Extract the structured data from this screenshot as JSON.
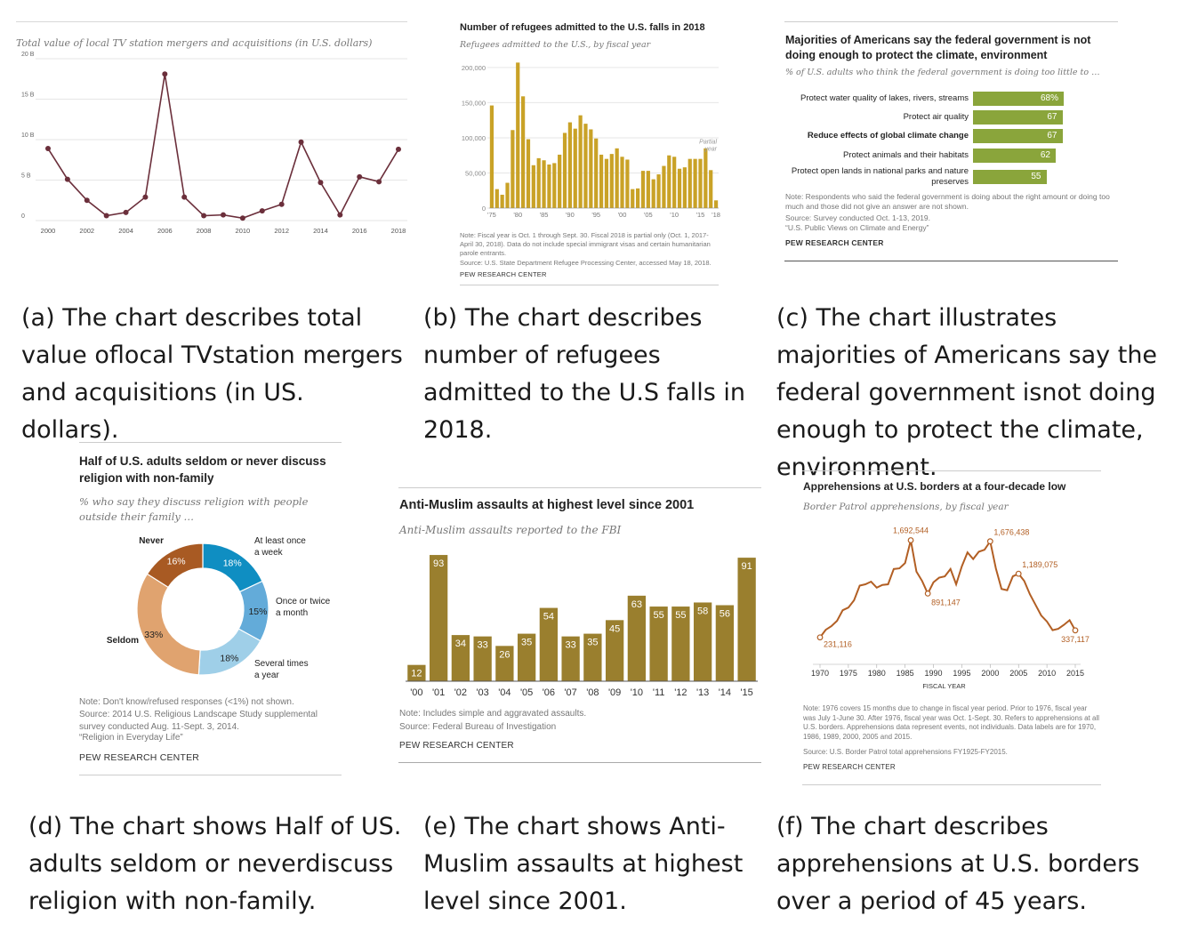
{
  "brand": "PEW RESEARCH CENTER",
  "colors": {
    "wine": "#6b2f3b",
    "gold": "#c9a227",
    "green": "#8aa53b",
    "teal": "#0f8ec2",
    "midblue": "#63abd9",
    "lightblue": "#9fcfe8",
    "peach": "#e0a36f",
    "brown": "#a85a23",
    "olive": "#9a7f2e",
    "orange": "#b25f24"
  },
  "captions": {
    "a": "(a) The chart describes total value oflocal TVstation mergers and acquisitions (in US. dollars).",
    "b": "(b) The chart describes number of refugees admitted to the U.S falls in 2018.",
    "c": "(c) The chart illustrates majorities of Americans say the federal government isnot doing enough to protect the climate, environment.",
    "d": "(d) The chart shows Half of US. adults seldom or neverdiscuss religion with non-family.",
    "e": "(e) The chart shows Anti-Muslim assaults at highest level since 2001.",
    "f": "(f) The chart describes apprehensions at U.S. borders over a period of 45 years."
  },
  "chart_data": [
    {
      "id": "a",
      "type": "line",
      "title": "",
      "subtitle": "Total value of local TV station mergers and acquisitions (in U.S. dollars)",
      "x": [
        2000,
        2001,
        2002,
        2003,
        2004,
        2005,
        2006,
        2007,
        2008,
        2009,
        2010,
        2011,
        2012,
        2013,
        2014,
        2015,
        2016,
        2017,
        2018
      ],
      "series": [
        {
          "values": [
            8.9,
            5.1,
            2.5,
            0.6,
            1.0,
            2.9,
            18.1,
            2.9,
            0.6,
            0.7,
            0.3,
            1.2,
            2.0,
            9.7,
            4.7,
            0.7,
            5.4,
            4.8,
            8.8
          ]
        }
      ],
      "y_ticks": [
        "20 B",
        "15 B",
        "10 B",
        "5 B",
        "0"
      ],
      "x_ticks": [
        "2000",
        "2002",
        "2004",
        "2006",
        "2008",
        "2010",
        "2012",
        "2014",
        "2016",
        "2018"
      ],
      "ylim": [
        0,
        20
      ],
      "grid": true
    },
    {
      "id": "b",
      "type": "bar",
      "title": "Number of refugees admitted to the U.S. falls in 2018",
      "subtitle": "Refugees admitted to the U.S., by fiscal year",
      "categories": [
        1975,
        1976,
        1977,
        1978,
        1979,
        1980,
        1981,
        1982,
        1983,
        1984,
        1985,
        1986,
        1987,
        1988,
        1989,
        1990,
        1991,
        1992,
        1993,
        1994,
        1995,
        1996,
        1997,
        1998,
        1999,
        2000,
        2001,
        2002,
        2003,
        2004,
        2005,
        2006,
        2007,
        2008,
        2009,
        2010,
        2011,
        2012,
        2013,
        2014,
        2015,
        2016,
        2017,
        2018
      ],
      "values": [
        146000,
        27000,
        19000,
        36000,
        111000,
        207000,
        159000,
        98000,
        61000,
        71000,
        68000,
        62000,
        64000,
        76000,
        107000,
        122000,
        113000,
        132000,
        120000,
        112000,
        99000,
        76000,
        70000,
        77000,
        85000,
        73000,
        69000,
        27000,
        28000,
        53000,
        53000,
        41000,
        48000,
        60000,
        75000,
        73000,
        56000,
        58000,
        70000,
        70000,
        70000,
        85000,
        54000,
        11000
      ],
      "y_ticks": [
        "200,000",
        "150,000",
        "100,000",
        "50,000",
        "0"
      ],
      "x_ticks": [
        "'75",
        "'80",
        "'85",
        "'90",
        "'95",
        "'00",
        "'05",
        "'10",
        "'15",
        "'18"
      ],
      "ylim": [
        0,
        210000
      ],
      "annotation": "Partial year",
      "note": "Note: Fiscal year is Oct. 1 through Sept. 30. Fiscal 2018 is partial only (Oct. 1, 2017-April 30, 2018). Data do not include special immigrant visas and certain humanitarian parole entrants.",
      "source": "Source: U.S. State Department Refugee Processing Center, accessed May 18, 2018."
    },
    {
      "id": "c",
      "type": "bar",
      "title": "Majorities of Americans say the federal government is not doing enough to protect the climate, environment",
      "subtitle": "% of U.S. adults who think the federal government is doing too little to …",
      "categories": [
        "Protect water quality of lakes, rivers, streams",
        "Protect air quality",
        "Reduce effects of global climate change",
        "Protect animals and their habitats",
        "Protect open lands in national parks and nature preserves"
      ],
      "values": [
        68,
        67,
        67,
        62,
        55
      ],
      "value_labels": [
        "68%",
        "67",
        "67",
        "62",
        "55"
      ],
      "highlight": "Reduce effects of global climate change",
      "note": "Note: Respondents who said the federal government is doing about the right amount or doing too much and those did not give an answer are not shown.",
      "source": "Source: Survey conducted Oct. 1-13, 2019.",
      "report": "“U.S. Public Views on Climate and Energy”"
    },
    {
      "id": "d",
      "type": "pie",
      "title": "Half of U.S. adults seldom or never discuss religion with non-family",
      "subtitle": "% who say they discuss religion with people outside their family …",
      "slices": [
        {
          "label": "At least once a week",
          "value": 18,
          "display": "18%",
          "color": "#0f8ec2",
          "text": "#ffffff"
        },
        {
          "label": "Once or twice a month",
          "value": 15,
          "display": "15%",
          "color": "#63abd9",
          "text": "#222222"
        },
        {
          "label": "Several times a year",
          "value": 18,
          "display": "18%",
          "color": "#9fcfe8",
          "text": "#222222"
        },
        {
          "label": "Seldom",
          "value": 33,
          "display": "33%",
          "color": "#e0a36f",
          "text": "#222222"
        },
        {
          "label": "Never",
          "value": 16,
          "display": "16%",
          "color": "#a85a23",
          "text": "#ffffff"
        }
      ],
      "note": "Note: Don't know/refused responses (<1%) not shown.",
      "source": "Source: 2014 U.S. Religious Landscape Study supplemental survey conducted Aug. 11-Sept. 3, 2014.",
      "report": "“Religion in Everyday Life”"
    },
    {
      "id": "e",
      "type": "bar",
      "title": "Anti-Muslim assaults at highest level since 2001",
      "subtitle": "Anti-Muslim assaults reported to the FBI",
      "categories": [
        "'00",
        "'01",
        "'02",
        "'03",
        "'04",
        "'05",
        "'06",
        "'07",
        "'08",
        "'09",
        "'10",
        "'11",
        "'12",
        "'13",
        "'14",
        "'15"
      ],
      "values": [
        12,
        93,
        34,
        33,
        26,
        35,
        54,
        33,
        35,
        45,
        63,
        55,
        55,
        58,
        56,
        91
      ],
      "ylim": [
        0,
        95
      ],
      "note": "Note: Includes simple and aggravated assaults.",
      "source": "Source: Federal Bureau of Investigation"
    },
    {
      "id": "f",
      "type": "line",
      "title": "Apprehensions at U.S. borders at a four-decade low",
      "subtitle": "Border Patrol apprehensions, by fiscal year",
      "x": [
        1970,
        1971,
        1972,
        1973,
        1974,
        1975,
        1976,
        1977,
        1978,
        1979,
        1980,
        1981,
        1982,
        1983,
        1984,
        1985,
        1986,
        1987,
        1988,
        1989,
        1990,
        1991,
        1992,
        1993,
        1994,
        1995,
        1996,
        1997,
        1998,
        1999,
        2000,
        2001,
        2002,
        2003,
        2004,
        2005,
        2006,
        2007,
        2008,
        2009,
        2010,
        2011,
        2012,
        2013,
        2014,
        2015
      ],
      "series": [
        {
          "values": [
            231116,
            345000,
            400000,
            480000,
            640000,
            680000,
            790000,
            1010000,
            1030000,
            1070000,
            980000,
            1020000,
            1030000,
            1260000,
            1270000,
            1350000,
            1692544,
            1220000,
            1080000,
            891147,
            1060000,
            1130000,
            1150000,
            1260000,
            1030000,
            1300000,
            1510000,
            1410000,
            1520000,
            1550000,
            1676438,
            1270000,
            960000,
            940000,
            1150000,
            1189075,
            1080000,
            880000,
            720000,
            560000,
            470000,
            340000,
            360000,
            420000,
            490000,
            337117
          ]
        }
      ],
      "labels": [
        {
          "year": 1970,
          "text": "231,116"
        },
        {
          "year": 1986,
          "text": "1,692,544"
        },
        {
          "year": 1989,
          "text": "891,147"
        },
        {
          "year": 2000,
          "text": "1,676,438"
        },
        {
          "year": 2005,
          "text": "1,189,075"
        },
        {
          "year": 2015,
          "text": "337,117"
        }
      ],
      "x_ticks": [
        "1970",
        "1975",
        "1980",
        "1985",
        "1990",
        "1995",
        "2000",
        "2005",
        "2010",
        "2015"
      ],
      "xlabel": "FISCAL YEAR",
      "ylim": [
        0,
        1900000
      ],
      "note": "Note: 1976 covers 15 months due to change in fiscal year period. Prior to 1976, fiscal year was July 1-June 30. After 1976, fiscal year was Oct. 1-Sept. 30. Refers to apprehensions at all U.S. borders. Apprehensions data represent events, not individuals. Data labels are for 1970, 1986, 1989, 2000, 2005 and 2015.",
      "source": "Source: U.S. Border Patrol total apprehensions FY1925-FY2015."
    }
  ]
}
